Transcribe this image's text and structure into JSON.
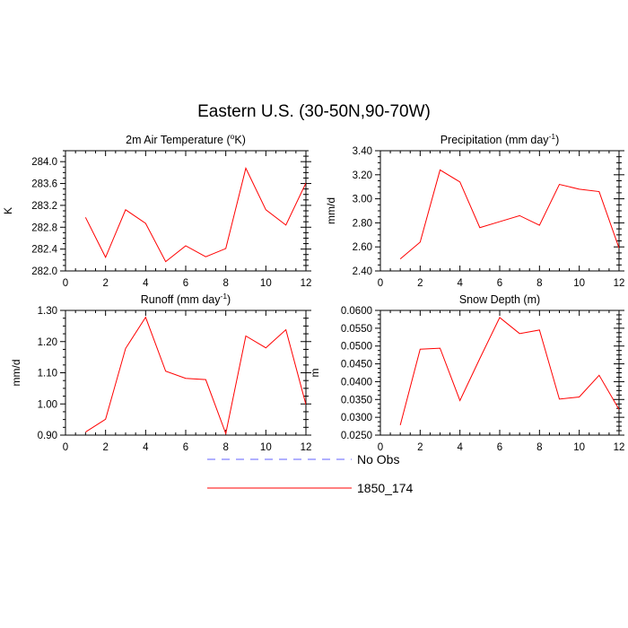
{
  "figure": {
    "title": "Eastern U.S. (30-50N,90-70W)"
  },
  "legend": {
    "entries": [
      {
        "label": "No Obs",
        "color": "#6060ff",
        "style": "dashed"
      },
      {
        "label": "1850_174",
        "color": "#ff0000",
        "style": "solid"
      }
    ]
  },
  "chart_data": [
    {
      "type": "line",
      "title": "2m Air Temperature (°K)",
      "title_main": "2m Air Temperature (",
      "title_sup": "o",
      "title_tail": "K)",
      "xlabel": "",
      "ylabel": "K",
      "xlim": [
        0,
        12
      ],
      "ylim": [
        282.0,
        284.2
      ],
      "xticks": [
        0,
        2,
        4,
        6,
        8,
        10,
        12
      ],
      "yticks": [
        282.0,
        282.4,
        282.8,
        283.2,
        283.6,
        284.0
      ],
      "ytick_labels": [
        "282.0",
        "282.4",
        "282.8",
        "283.2",
        "283.6",
        "284.0"
      ],
      "series": [
        {
          "name": "1850_174",
          "color": "#ff0000",
          "x": [
            1,
            2,
            3,
            4,
            5,
            6,
            7,
            8,
            9,
            10,
            11,
            12
          ],
          "y": [
            282.98,
            282.25,
            283.12,
            282.87,
            282.17,
            282.46,
            282.26,
            282.41,
            283.88,
            283.12,
            282.84,
            283.61
          ]
        }
      ]
    },
    {
      "type": "line",
      "title": "Precipitation (mm day-1)",
      "title_main": "Precipitation (mm day",
      "title_sup": "-1",
      "title_tail": ")",
      "xlabel": "",
      "ylabel": "mm/d",
      "xlim": [
        0,
        12
      ],
      "ylim": [
        2.4,
        3.4
      ],
      "xticks": [
        0,
        2,
        4,
        6,
        8,
        10,
        12
      ],
      "yticks": [
        2.4,
        2.6,
        2.8,
        3.0,
        3.2,
        3.4
      ],
      "ytick_labels": [
        "2.40",
        "2.60",
        "2.80",
        "3.00",
        "3.20",
        "3.40"
      ],
      "series": [
        {
          "name": "1850_174",
          "color": "#ff0000",
          "x": [
            1,
            2,
            3,
            4,
            5,
            6,
            7,
            8,
            9,
            10,
            11,
            12
          ],
          "y": [
            2.5,
            2.64,
            3.24,
            3.14,
            2.76,
            2.81,
            2.86,
            2.78,
            3.12,
            3.08,
            3.06,
            2.59
          ]
        }
      ]
    },
    {
      "type": "line",
      "title": "Runoff (mm day-1)",
      "title_main": "Runoff (mm day",
      "title_sup": "-1",
      "title_tail": ")",
      "xlabel": "",
      "ylabel": "mm/d",
      "xlim": [
        0,
        12
      ],
      "ylim": [
        0.9,
        1.3
      ],
      "xticks": [
        0,
        2,
        4,
        6,
        8,
        10,
        12
      ],
      "yticks": [
        0.9,
        1.0,
        1.1,
        1.2,
        1.3
      ],
      "ytick_labels": [
        "0.90",
        "1.00",
        "1.10",
        "1.20",
        "1.30"
      ],
      "series": [
        {
          "name": "1850_174",
          "color": "#ff0000",
          "x": [
            1,
            2,
            3,
            4,
            5,
            6,
            7,
            8,
            9,
            10,
            11,
            12
          ],
          "y": [
            0.91,
            0.951,
            1.178,
            1.278,
            1.105,
            1.082,
            1.078,
            0.905,
            1.218,
            1.18,
            1.238,
            0.998
          ]
        }
      ]
    },
    {
      "type": "line",
      "title": "Snow Depth (m)",
      "title_main": "Snow Depth (m)",
      "title_sup": "",
      "title_tail": "",
      "xlabel": "",
      "ylabel": "m",
      "xlim": [
        0,
        12
      ],
      "ylim": [
        0.025,
        0.06
      ],
      "xticks": [
        0,
        2,
        4,
        6,
        8,
        10,
        12
      ],
      "yticks": [
        0.025,
        0.03,
        0.035,
        0.04,
        0.045,
        0.05,
        0.055,
        0.06
      ],
      "ytick_labels": [
        "0.0250",
        "0.0300",
        "0.0350",
        "0.0400",
        "0.0450",
        "0.0500",
        "0.0550",
        "0.0600"
      ],
      "series": [
        {
          "name": "1850_174",
          "color": "#ff0000",
          "x": [
            1,
            2,
            3,
            4,
            5,
            6,
            7,
            8,
            9,
            10,
            11,
            12
          ],
          "y": [
            0.0278,
            0.0491,
            0.0494,
            0.0347,
            0.0465,
            0.058,
            0.0535,
            0.0545,
            0.0351,
            0.0357,
            0.0418,
            0.0322
          ]
        }
      ]
    }
  ]
}
